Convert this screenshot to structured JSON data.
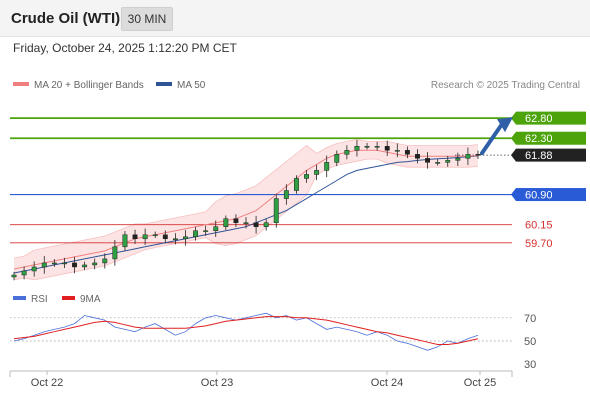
{
  "header": {
    "title": "Crude Oil (WTI)",
    "timeframe": "30 MIN"
  },
  "datetime": "Friday, October 24, 2025 1:12:20 PM CET",
  "legend": {
    "ma20": {
      "label": "MA 20 + Bollinger Bands",
      "color": "#f08080"
    },
    "ma50": {
      "label": "MA 50",
      "color": "#2f5597"
    },
    "rsi": {
      "label": "RSI",
      "color": "#4a6fd8"
    },
    "ma9": {
      "label": "9MA",
      "color": "#e02020"
    }
  },
  "credit": "Research © 2025 Trading Central",
  "chart_data": [
    {
      "type": "candlestick",
      "title": "",
      "ylim": [
        58.9,
        63.3
      ],
      "x_ticks": [
        "Oct 22",
        "Oct 23",
        "Oct 24",
        "Oct 25"
      ],
      "levels": [
        {
          "value": 62.8,
          "label": "62.80",
          "kind": "resistance",
          "color": "#4ca30a"
        },
        {
          "value": 62.3,
          "label": "62.30",
          "kind": "resistance",
          "color": "#4ca30a"
        },
        {
          "value": 61.88,
          "label": "61.88",
          "kind": "last-price",
          "color": "#222222"
        },
        {
          "value": 60.9,
          "label": "60.90",
          "kind": "pivot",
          "color": "#2a5bd7"
        },
        {
          "value": 60.15,
          "label": "60.15",
          "kind": "support",
          "color": "#d43030"
        },
        {
          "value": 59.7,
          "label": "59.70",
          "kind": "support",
          "color": "#d43030"
        }
      ],
      "series": [
        {
          "name": "Price",
          "values": [
            58.9,
            59.0,
            59.1,
            59.2,
            59.2,
            59.2,
            59.1,
            59.15,
            59.2,
            59.3,
            59.6,
            59.9,
            59.8,
            59.9,
            59.9,
            59.8,
            59.8,
            59.85,
            60.0,
            60.0,
            60.1,
            60.3,
            60.2,
            60.2,
            60.1,
            60.2,
            60.8,
            61.0,
            61.3,
            61.4,
            61.5,
            61.7,
            61.9,
            62.0,
            62.1,
            62.1,
            62.1,
            62.0,
            62.0,
            61.9,
            61.8,
            61.7,
            61.7,
            61.75,
            61.8,
            61.9,
            61.88
          ]
        },
        {
          "name": "MA 20",
          "values": [
            59.05,
            59.1,
            59.15,
            59.2,
            59.25,
            59.3,
            59.35,
            59.4,
            59.45,
            59.5,
            59.6,
            59.7,
            59.8,
            59.85,
            59.9,
            59.95,
            60.0,
            60.05,
            60.1,
            60.15,
            60.2,
            60.25,
            60.3,
            60.4,
            60.5,
            60.7,
            60.9,
            61.1,
            61.3,
            61.5,
            61.65,
            61.8,
            61.9,
            61.95,
            62.0,
            62.0,
            62.0,
            61.95,
            61.9,
            61.85,
            61.85,
            61.85,
            61.85,
            61.85,
            61.85,
            61.85,
            61.87
          ]
        },
        {
          "name": "MA 50",
          "values": [
            58.95,
            59.0,
            59.05,
            59.1,
            59.15,
            59.2,
            59.25,
            59.3,
            59.35,
            59.4,
            59.45,
            59.5,
            59.55,
            59.6,
            59.65,
            59.7,
            59.75,
            59.8,
            59.85,
            59.9,
            59.95,
            60.0,
            60.05,
            60.1,
            60.2,
            60.3,
            60.4,
            60.5,
            60.65,
            60.8,
            60.95,
            61.1,
            61.25,
            61.4,
            61.5,
            61.55,
            61.6,
            61.65,
            61.7,
            61.72,
            61.75,
            61.77,
            61.79,
            61.8,
            61.82,
            61.84,
            61.86
          ]
        }
      ]
    },
    {
      "type": "line",
      "title": "",
      "ylim": [
        25,
        75
      ],
      "y_ticks": [
        30,
        50,
        70
      ],
      "series": [
        {
          "name": "RSI",
          "values": [
            50,
            52,
            55,
            58,
            60,
            62,
            65,
            72,
            70,
            68,
            62,
            60,
            58,
            62,
            65,
            60,
            55,
            58,
            65,
            70,
            72,
            70,
            68,
            70,
            72,
            74,
            70,
            72,
            68,
            70,
            65,
            60,
            62,
            60,
            58,
            55,
            58,
            55,
            50,
            48,
            45,
            42,
            45,
            50,
            48,
            52,
            55
          ]
        },
        {
          "name": "9MA",
          "values": [
            52,
            53,
            54,
            56,
            58,
            60,
            62,
            64,
            66,
            67,
            66,
            64,
            62,
            61,
            61,
            61,
            61,
            61,
            62,
            63,
            65,
            67,
            68,
            69,
            70,
            71,
            71,
            71,
            70,
            70,
            69,
            68,
            66,
            64,
            62,
            60,
            58,
            57,
            55,
            53,
            51,
            49,
            47,
            47,
            48,
            50,
            52
          ]
        }
      ]
    }
  ]
}
